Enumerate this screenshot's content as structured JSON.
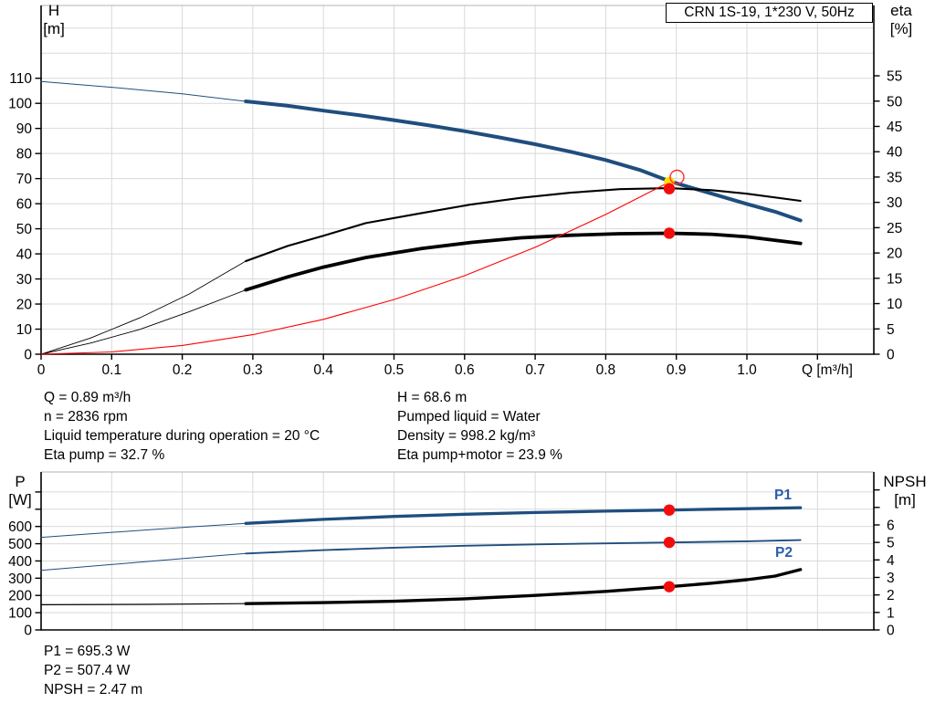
{
  "axes": {
    "h": {
      "line1": "H",
      "line2": "[m]"
    },
    "eta": {
      "line1": "eta",
      "line2": "[%]"
    },
    "p": {
      "line1": "P",
      "line2": "[W]"
    },
    "npsh": {
      "line1": "NPSH",
      "line2": "[m]"
    }
  },
  "info_top": {
    "left": [
      "Q = 0.89 m³/h",
      "n = 2836 rpm",
      "Liquid temperature during operation = 20 °C",
      "Eta pump = 32.7 %"
    ],
    "right": [
      "H = 68.6 m",
      "Pumped liquid = Water",
      "Density = 998.2 kg/m³",
      "Eta pump+motor = 23.9 %"
    ]
  },
  "info_bottom": [
    "P1 = 695.3 W",
    "P2 = 507.4 W",
    "NPSH = 2.47 m"
  ],
  "colors": {
    "curve_blue": "#1f4e7e",
    "text_blue": "#2a5fa8",
    "red": "#f20d0d",
    "ring_red": "#ff2a2a",
    "yellow": "#ffdf00",
    "grid": "#d9d9d9",
    "axis": "#000000",
    "border_gray": "#b3b3b3"
  },
  "chart_data": [
    {
      "type": "line",
      "name": "qh-eta-chart",
      "title": "CRN 1S-19, 1*230 V, 50Hz",
      "xlabel": "Q [m³/h]",
      "xlim": [
        0,
        1.18
      ],
      "x_ticks": [
        "0",
        "0.1",
        "0.2",
        "0.3",
        "0.4",
        "0.5",
        "0.6",
        "0.7",
        "0.8",
        "0.9",
        "1.0"
      ],
      "grid": true,
      "left_axis": {
        "label": "H [m]",
        "ticks": [
          0,
          10,
          20,
          30,
          40,
          50,
          60,
          70,
          80,
          90,
          100,
          110
        ],
        "range": [
          0,
          139
        ]
      },
      "right_axis": {
        "label": "eta [%]",
        "ticks": [
          0,
          5,
          10,
          15,
          20,
          25,
          30,
          35,
          40,
          45,
          50,
          55
        ],
        "range": [
          0,
          68.9
        ]
      },
      "series": [
        {
          "name": "H",
          "axis": "left",
          "color": "#1f4e7e",
          "bold_from": 0.29,
          "points": [
            [
              0,
              108.7
            ],
            [
              0.1,
              106.4
            ],
            [
              0.2,
              103.8
            ],
            [
              0.29,
              100.8
            ],
            [
              0.35,
              99.0
            ],
            [
              0.4,
              97.1
            ],
            [
              0.45,
              95.3
            ],
            [
              0.5,
              93.3
            ],
            [
              0.55,
              91.2
            ],
            [
              0.6,
              88.9
            ],
            [
              0.65,
              86.4
            ],
            [
              0.7,
              83.7
            ],
            [
              0.75,
              80.7
            ],
            [
              0.8,
              77.4
            ],
            [
              0.85,
              73.3
            ],
            [
              0.89,
              69.0
            ],
            [
              0.95,
              64.0
            ],
            [
              1.0,
              59.9
            ],
            [
              1.04,
              56.8
            ],
            [
              1.076,
              53.3
            ]
          ]
        },
        {
          "name": "Eta pump",
          "axis": "right",
          "color": "#000000",
          "bold_from": 0.29,
          "points": [
            [
              0,
              0
            ],
            [
              0.07,
              3.2
            ],
            [
              0.14,
              7.2
            ],
            [
              0.21,
              11.9
            ],
            [
              0.29,
              18.4
            ],
            [
              0.35,
              21.4
            ],
            [
              0.4,
              23.4
            ],
            [
              0.46,
              25.9
            ],
            [
              0.54,
              27.9
            ],
            [
              0.61,
              29.6
            ],
            [
              0.68,
              30.9
            ],
            [
              0.75,
              31.9
            ],
            [
              0.82,
              32.6
            ],
            [
              0.89,
              32.8
            ],
            [
              0.95,
              32.4
            ],
            [
              1.0,
              31.7
            ],
            [
              1.076,
              30.3
            ]
          ]
        },
        {
          "name": "Eta pump+motor",
          "axis": "right",
          "color": "#000000",
          "bold_from": 0.29,
          "points": [
            [
              0,
              0
            ],
            [
              0.07,
              2.2
            ],
            [
              0.14,
              4.9
            ],
            [
              0.21,
              8.4
            ],
            [
              0.29,
              12.7
            ],
            [
              0.35,
              15.3
            ],
            [
              0.4,
              17.2
            ],
            [
              0.46,
              19.1
            ],
            [
              0.54,
              20.9
            ],
            [
              0.61,
              22.1
            ],
            [
              0.68,
              23.0
            ],
            [
              0.75,
              23.5
            ],
            [
              0.82,
              23.8
            ],
            [
              0.89,
              23.9
            ],
            [
              0.95,
              23.7
            ],
            [
              1.0,
              23.2
            ],
            [
              1.076,
              21.9
            ]
          ]
        },
        {
          "name": "System curve",
          "axis": "left",
          "color": "#ff0000",
          "bold_from": null,
          "points": [
            [
              0,
              0
            ],
            [
              0.1,
              0.9
            ],
            [
              0.2,
              3.5
            ],
            [
              0.3,
              7.8
            ],
            [
              0.4,
              13.9
            ],
            [
              0.5,
              21.8
            ],
            [
              0.6,
              31.3
            ],
            [
              0.7,
              42.6
            ],
            [
              0.8,
              55.7
            ],
            [
              0.85,
              62.9
            ],
            [
              0.89,
              68.6
            ]
          ]
        }
      ],
      "markers": [
        {
          "type": "dot",
          "color": "yellow",
          "q": 0.89,
          "value": 68.6,
          "scale": "left",
          "label": "duty-point"
        },
        {
          "type": "ring",
          "color": "red",
          "q": 0.901,
          "value": 70.6,
          "scale": "left",
          "label": "requested-duty-point"
        },
        {
          "type": "dot",
          "color": "red",
          "q": 0.89,
          "value": 32.7,
          "scale": "right",
          "label": "eta-pump-point"
        },
        {
          "type": "dot",
          "color": "red",
          "q": 0.89,
          "value": 23.9,
          "scale": "right",
          "label": "eta-pump-motor-point"
        }
      ]
    },
    {
      "type": "line",
      "name": "power-npsh-chart",
      "title": "",
      "xlabel": "",
      "xlim": [
        0,
        1.18
      ],
      "x_ticks": [],
      "grid": true,
      "curve_labels": [
        "P1",
        "P2"
      ],
      "left_axis": {
        "label": "P [W]",
        "ticks": [
          0,
          100,
          200,
          300,
          400,
          500,
          600
        ],
        "range": [
          0,
          915
        ]
      },
      "right_axis": {
        "label": "NPSH [m]",
        "ticks": [
          0,
          1,
          2,
          3,
          4,
          5,
          6
        ],
        "range": [
          0,
          9
        ]
      },
      "series": [
        {
          "name": "P1",
          "axis": "left",
          "color": "#1f4e7e",
          "bold_from": 0.29,
          "points": [
            [
              0,
              537
            ],
            [
              0.07,
              557
            ],
            [
              0.14,
              577
            ],
            [
              0.21,
              597
            ],
            [
              0.29,
              618
            ],
            [
              0.4,
              641
            ],
            [
              0.5,
              658
            ],
            [
              0.6,
              671
            ],
            [
              0.7,
              681
            ],
            [
              0.8,
              689
            ],
            [
              0.89,
              695.3
            ],
            [
              0.95,
              700
            ],
            [
              1.0,
              703
            ],
            [
              1.076,
              709
            ]
          ]
        },
        {
          "name": "P2",
          "axis": "left",
          "color": "#1f4e7e",
          "bold_from": 0.29,
          "points": [
            [
              0,
              345
            ],
            [
              0.07,
              369
            ],
            [
              0.14,
              393
            ],
            [
              0.21,
              417
            ],
            [
              0.29,
              443
            ],
            [
              0.4,
              463
            ],
            [
              0.5,
              477
            ],
            [
              0.6,
              488
            ],
            [
              0.7,
              496
            ],
            [
              0.8,
              502
            ],
            [
              0.89,
              507.4
            ],
            [
              0.95,
              511
            ],
            [
              1.0,
              514
            ],
            [
              1.076,
              521
            ]
          ]
        },
        {
          "name": "NPSH",
          "axis": "right",
          "color": "#000000",
          "bold_from": 0.29,
          "points": [
            [
              0,
              1.44
            ],
            [
              0.15,
              1.46
            ],
            [
              0.29,
              1.5
            ],
            [
              0.4,
              1.56
            ],
            [
              0.5,
              1.64
            ],
            [
              0.6,
              1.78
            ],
            [
              0.7,
              1.97
            ],
            [
              0.8,
              2.2
            ],
            [
              0.89,
              2.47
            ],
            [
              0.95,
              2.67
            ],
            [
              1.0,
              2.87
            ],
            [
              1.04,
              3.08
            ],
            [
              1.076,
              3.45
            ]
          ]
        }
      ],
      "markers": [
        {
          "type": "dot",
          "color": "red",
          "q": 0.89,
          "value": 695.3,
          "scale": "left",
          "label": "p1-point"
        },
        {
          "type": "dot",
          "color": "red",
          "q": 0.89,
          "value": 507.4,
          "scale": "left",
          "label": "p2-point"
        },
        {
          "type": "dot",
          "color": "red",
          "q": 0.89,
          "value": 2.47,
          "scale": "right",
          "label": "npsh-point"
        }
      ]
    }
  ]
}
